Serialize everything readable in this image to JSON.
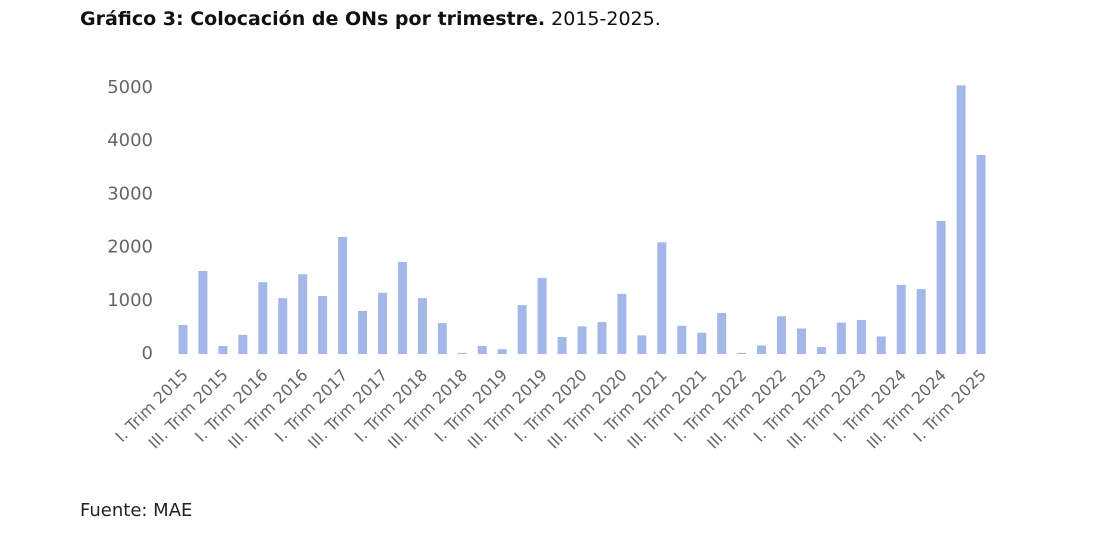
{
  "chart_data": {
    "type": "bar",
    "title": "Gráfico 3: Colocación de ONs por trimestre.",
    "subtitle": "2015-2025.",
    "source": "Fuente: MAE",
    "categories": [
      "I. Trim 2015",
      null,
      "III. Trim 2015",
      null,
      "I. Trim 2016",
      null,
      "III. Trim 2016",
      null,
      "I. Trim 2017",
      null,
      "III. Trim 2017",
      null,
      "I. Trim 2018",
      null,
      "III. Trim 2018",
      null,
      "I. Trim 2019",
      null,
      "III. Trim 2019",
      null,
      "I. Trim 2020",
      null,
      "III. Trim 2020",
      null,
      "I. Trim 2021",
      null,
      "III. Trim 2021",
      null,
      "I. Trim 2022",
      null,
      "III. Trim 2022",
      null,
      "I. Trim 2023",
      null,
      "III. Trim 2023",
      null,
      "I. Trim 2024",
      null,
      "III. Trim 2024",
      null,
      "I. Trim 2025"
    ],
    "values": [
      545,
      1560,
      150,
      360,
      1350,
      1050,
      1500,
      1090,
      2200,
      810,
      1150,
      1730,
      1050,
      580,
      20,
      150,
      90,
      920,
      1430,
      320,
      520,
      600,
      1130,
      350,
      2100,
      530,
      400,
      770,
      20,
      160,
      710,
      480,
      130,
      590,
      640,
      330,
      1300,
      1220,
      2500,
      5050,
      3740
    ],
    "color": "#a3b8e8",
    "ylim": [
      0,
      5000
    ],
    "yticks": [
      0,
      1000,
      2000,
      3000,
      4000,
      5000
    ],
    "grid": false
  }
}
